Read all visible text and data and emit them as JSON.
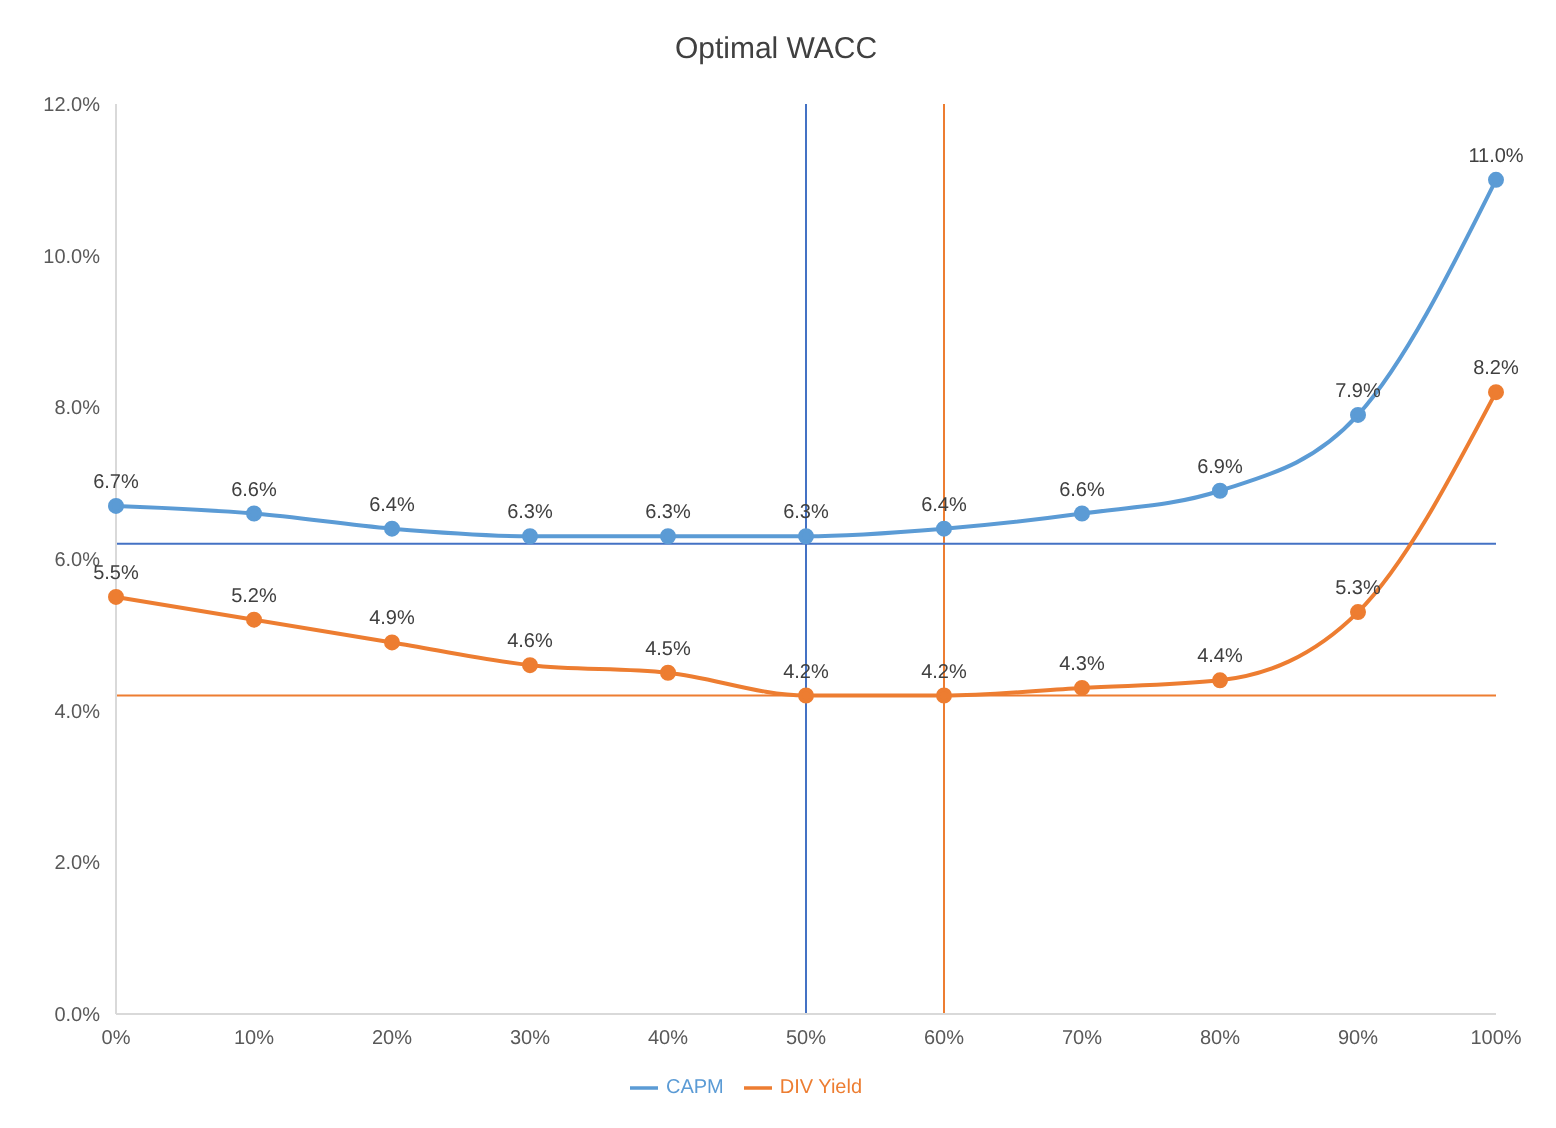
{
  "chart_data": {
    "type": "line",
    "title": "Optimal WACC",
    "categories": [
      "0%",
      "10%",
      "20%",
      "30%",
      "40%",
      "50%",
      "60%",
      "70%",
      "80%",
      "90%",
      "100%"
    ],
    "series": [
      {
        "name": "CAPM",
        "color": "#5b9bd5",
        "values": [
          6.7,
          6.6,
          6.4,
          6.3,
          6.3,
          6.3,
          6.4,
          6.6,
          6.9,
          7.9,
          11.0
        ],
        "value_labels": [
          "6.7%",
          "6.6%",
          "6.4%",
          "6.3%",
          "6.3%",
          "6.3%",
          "6.4%",
          "6.6%",
          "6.9%",
          "7.9%",
          "11.0%"
        ]
      },
      {
        "name": "DIV Yield",
        "color": "#ed7d31",
        "values": [
          5.5,
          5.2,
          4.9,
          4.6,
          4.5,
          4.2,
          4.2,
          4.3,
          4.4,
          5.3,
          8.2
        ],
        "value_labels": [
          "5.5%",
          "5.2%",
          "4.9%",
          "4.6%",
          "4.5%",
          "4.2%",
          "4.2%",
          "4.3%",
          "4.4%",
          "5.3%",
          "8.2%"
        ]
      }
    ],
    "ylim": [
      0,
      12
    ],
    "yticks": [
      {
        "value": 0,
        "label": "0.0%"
      },
      {
        "value": 2,
        "label": "2.0%"
      },
      {
        "value": 4,
        "label": "4.0%"
      },
      {
        "value": 6,
        "label": "6.0%"
      },
      {
        "value": 8,
        "label": "8.0%"
      },
      {
        "value": 10,
        "label": "10.0%"
      },
      {
        "value": 12,
        "label": "12.0%"
      }
    ],
    "ref_lines": [
      {
        "axis": "x",
        "value": "50%",
        "color": "#4472c4"
      },
      {
        "axis": "x",
        "value": "60%",
        "color": "#ed7d31"
      },
      {
        "axis": "y",
        "value": 6.2,
        "color": "#4472c4"
      },
      {
        "axis": "y",
        "value": 4.2,
        "color": "#ed7d31"
      }
    ],
    "legend": "bottom",
    "marker": "circle",
    "line_style": "solid",
    "grid": false
  }
}
